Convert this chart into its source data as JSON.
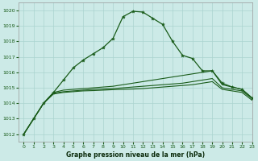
{
  "bg_color": "#cceae7",
  "grid_color": "#aad4d0",
  "line_color": "#1a5c1a",
  "xlabel": "Graphe pression niveau de la mer (hPa)",
  "xlim": [
    -0.5,
    23
  ],
  "ylim": [
    1011.5,
    1020.5
  ],
  "yticks": [
    1012,
    1013,
    1014,
    1015,
    1016,
    1017,
    1018,
    1019,
    1020
  ],
  "xticks": [
    0,
    1,
    2,
    3,
    4,
    5,
    6,
    7,
    8,
    9,
    10,
    11,
    12,
    13,
    14,
    15,
    16,
    17,
    18,
    19,
    20,
    21,
    22,
    23
  ],
  "series_main_x": [
    0,
    1,
    2,
    3,
    4,
    5,
    6,
    7,
    8,
    9,
    10,
    11,
    12,
    13,
    14,
    15,
    16,
    17,
    18,
    19,
    20,
    21,
    22,
    23
  ],
  "series_main_y": [
    1012.0,
    1013.0,
    1014.0,
    1014.7,
    1015.5,
    1016.3,
    1016.8,
    1017.2,
    1017.6,
    1018.2,
    1019.6,
    1019.95,
    1019.9,
    1019.5,
    1019.1,
    1018.0,
    1017.1,
    1016.9,
    1016.1,
    1016.1,
    1015.3,
    1015.05,
    1014.9,
    1014.35
  ],
  "series_mid_x": [
    0,
    1,
    2,
    3,
    4,
    5,
    6,
    7,
    8,
    9,
    10,
    11,
    12,
    13,
    14,
    15,
    16,
    17,
    18,
    19,
    20,
    21,
    22,
    23
  ],
  "series_mid_y": [
    1012.0,
    1013.0,
    1014.0,
    1014.7,
    1014.85,
    1014.9,
    1014.95,
    1015.0,
    1015.05,
    1015.1,
    1015.2,
    1015.3,
    1015.4,
    1015.5,
    1015.6,
    1015.7,
    1015.8,
    1015.9,
    1016.0,
    1016.1,
    1015.2,
    1015.05,
    1014.9,
    1014.35
  ],
  "series_low1_x": [
    0,
    1,
    2,
    3,
    4,
    5,
    6,
    7,
    8,
    9,
    10,
    11,
    12,
    13,
    14,
    15,
    16,
    17,
    18,
    19,
    20,
    21,
    22,
    23
  ],
  "series_low1_y": [
    1012.0,
    1013.0,
    1014.0,
    1014.65,
    1014.75,
    1014.8,
    1014.85,
    1014.9,
    1014.92,
    1014.95,
    1015.0,
    1015.05,
    1015.1,
    1015.15,
    1015.2,
    1015.25,
    1015.3,
    1015.4,
    1015.5,
    1015.6,
    1015.0,
    1014.9,
    1014.8,
    1014.3
  ],
  "series_low2_x": [
    0,
    1,
    2,
    3,
    4,
    5,
    6,
    7,
    8,
    9,
    10,
    11,
    12,
    13,
    14,
    15,
    16,
    17,
    18,
    19,
    20,
    21,
    22,
    23
  ],
  "series_low2_y": [
    1012.0,
    1013.0,
    1014.0,
    1014.6,
    1014.7,
    1014.75,
    1014.8,
    1014.82,
    1014.85,
    1014.88,
    1014.9,
    1014.92,
    1014.95,
    1015.0,
    1015.05,
    1015.1,
    1015.15,
    1015.2,
    1015.3,
    1015.4,
    1014.9,
    1014.8,
    1014.7,
    1014.2
  ]
}
